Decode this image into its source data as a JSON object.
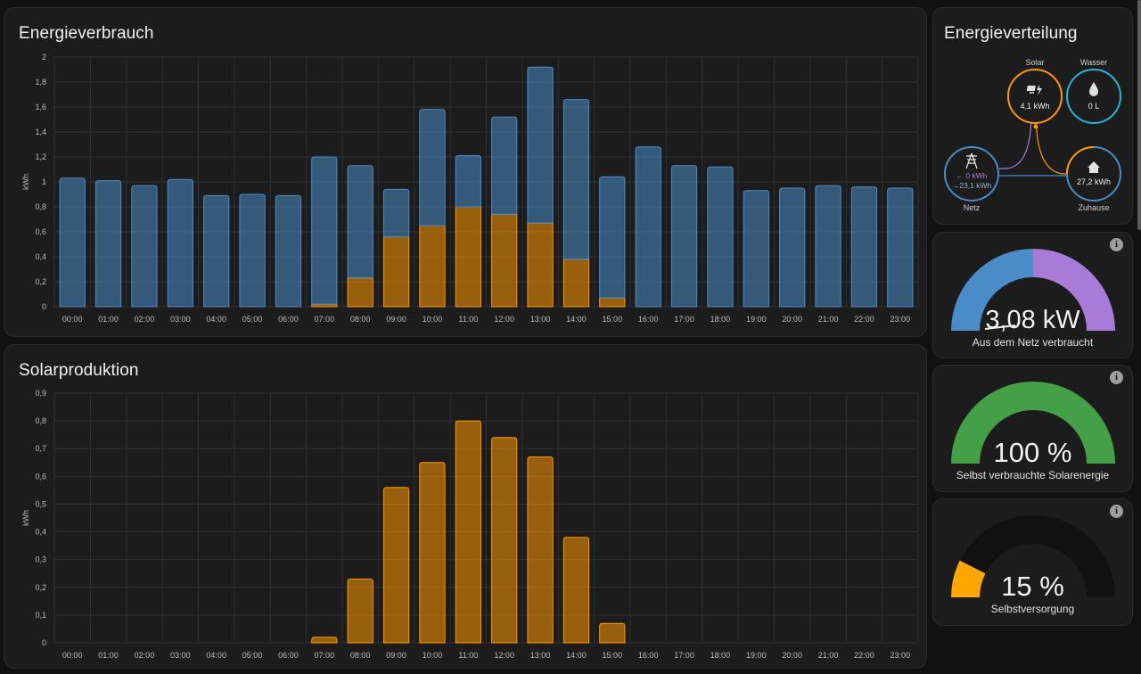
{
  "energy_usage": {
    "title": "Energieverbrauch",
    "ylabel": "kWh",
    "y_ticks": [
      "0",
      "0,2",
      "0,4",
      "0,6",
      "0,8",
      "1",
      "1,2",
      "1,4",
      "1,6",
      "1,8",
      "2"
    ]
  },
  "solar_production": {
    "title": "Solarproduktion",
    "ylabel": "kWh",
    "y_ticks": [
      "0",
      "0,1",
      "0,2",
      "0,3",
      "0,4",
      "0,5",
      "0,6",
      "0,7",
      "0,8",
      "0,9"
    ]
  },
  "distribution": {
    "title": "Energieverteilung",
    "solar": {
      "label": "Solar",
      "value": "4,1 kWh",
      "icon": "solar-panel-icon"
    },
    "water": {
      "label": "Wasser",
      "value": "0 L",
      "icon": "water-drop-icon"
    },
    "grid": {
      "label": "Netz",
      "value_in": "← 0 kWh",
      "value_out": "→23,1 kWh",
      "icon": "transmission-tower-icon"
    },
    "home": {
      "label": "Zuhause",
      "value": "27,2 kWh",
      "icon": "home-icon"
    }
  },
  "gauges": [
    {
      "value": "3,08 kW",
      "label": "Aus dem Netz verbraucht",
      "icon": "info-icon"
    },
    {
      "value": "100 %",
      "label": "Selbst verbrauchte Solarenergie",
      "icon": "info-icon"
    },
    {
      "value": "15 %",
      "label": "Selbstversorgung",
      "icon": "info-icon"
    }
  ],
  "colors": {
    "grid_blue": "#4a8cc7",
    "solar_orange": "#ff9800",
    "return_purple": "#a97bd8",
    "self_green": "#43a047",
    "water_teal": "#26b5d6"
  },
  "chart_data": [
    {
      "type": "bar",
      "title": "Energieverbrauch",
      "ylabel": "kWh",
      "ylim": [
        0,
        2
      ],
      "categories": [
        "00:00",
        "01:00",
        "02:00",
        "03:00",
        "04:00",
        "05:00",
        "06:00",
        "07:00",
        "08:00",
        "09:00",
        "10:00",
        "11:00",
        "12:00",
        "13:00",
        "14:00",
        "15:00",
        "16:00",
        "17:00",
        "18:00",
        "19:00",
        "20:00",
        "21:00",
        "22:00",
        "23:00"
      ],
      "stacked": true,
      "series": [
        {
          "values": [
            0,
            0,
            0,
            0,
            0,
            0,
            0,
            0.02,
            0.23,
            0.56,
            0.65,
            0.8,
            0.74,
            0.67,
            0.38,
            0.07,
            0,
            0,
            0,
            0,
            0,
            0,
            0,
            0
          ]
        },
        {
          "values": [
            1.03,
            1.01,
            0.97,
            1.02,
            0.89,
            0.9,
            0.89,
            1.18,
            0.9,
            0.38,
            0.93,
            0.41,
            0.78,
            1.25,
            1.28,
            0.97,
            1.28,
            1.13,
            1.12,
            0.93,
            0.95,
            0.97,
            0.96,
            0.95
          ]
        }
      ],
      "grid": true
    },
    {
      "type": "bar",
      "title": "Solarproduktion",
      "ylabel": "kWh",
      "ylim": [
        0,
        0.9
      ],
      "categories": [
        "00:00",
        "01:00",
        "02:00",
        "03:00",
        "04:00",
        "05:00",
        "06:00",
        "07:00",
        "08:00",
        "09:00",
        "10:00",
        "11:00",
        "12:00",
        "13:00",
        "14:00",
        "15:00",
        "16:00",
        "17:00",
        "18:00",
        "19:00",
        "20:00",
        "21:00",
        "22:00",
        "23:00"
      ],
      "series": [
        {
          "values": [
            0,
            0,
            0,
            0,
            0,
            0,
            0,
            0.02,
            0.23,
            0.56,
            0.65,
            0.8,
            0.74,
            0.67,
            0.38,
            0.07,
            0,
            0,
            0,
            0,
            0,
            0,
            0,
            0
          ]
        }
      ],
      "grid": true
    }
  ],
  "gauge_data": [
    {
      "type": "split",
      "fraction_left": 0.5
    },
    {
      "type": "fill",
      "fraction": 1.0
    },
    {
      "type": "fill",
      "fraction": 0.15
    }
  ]
}
